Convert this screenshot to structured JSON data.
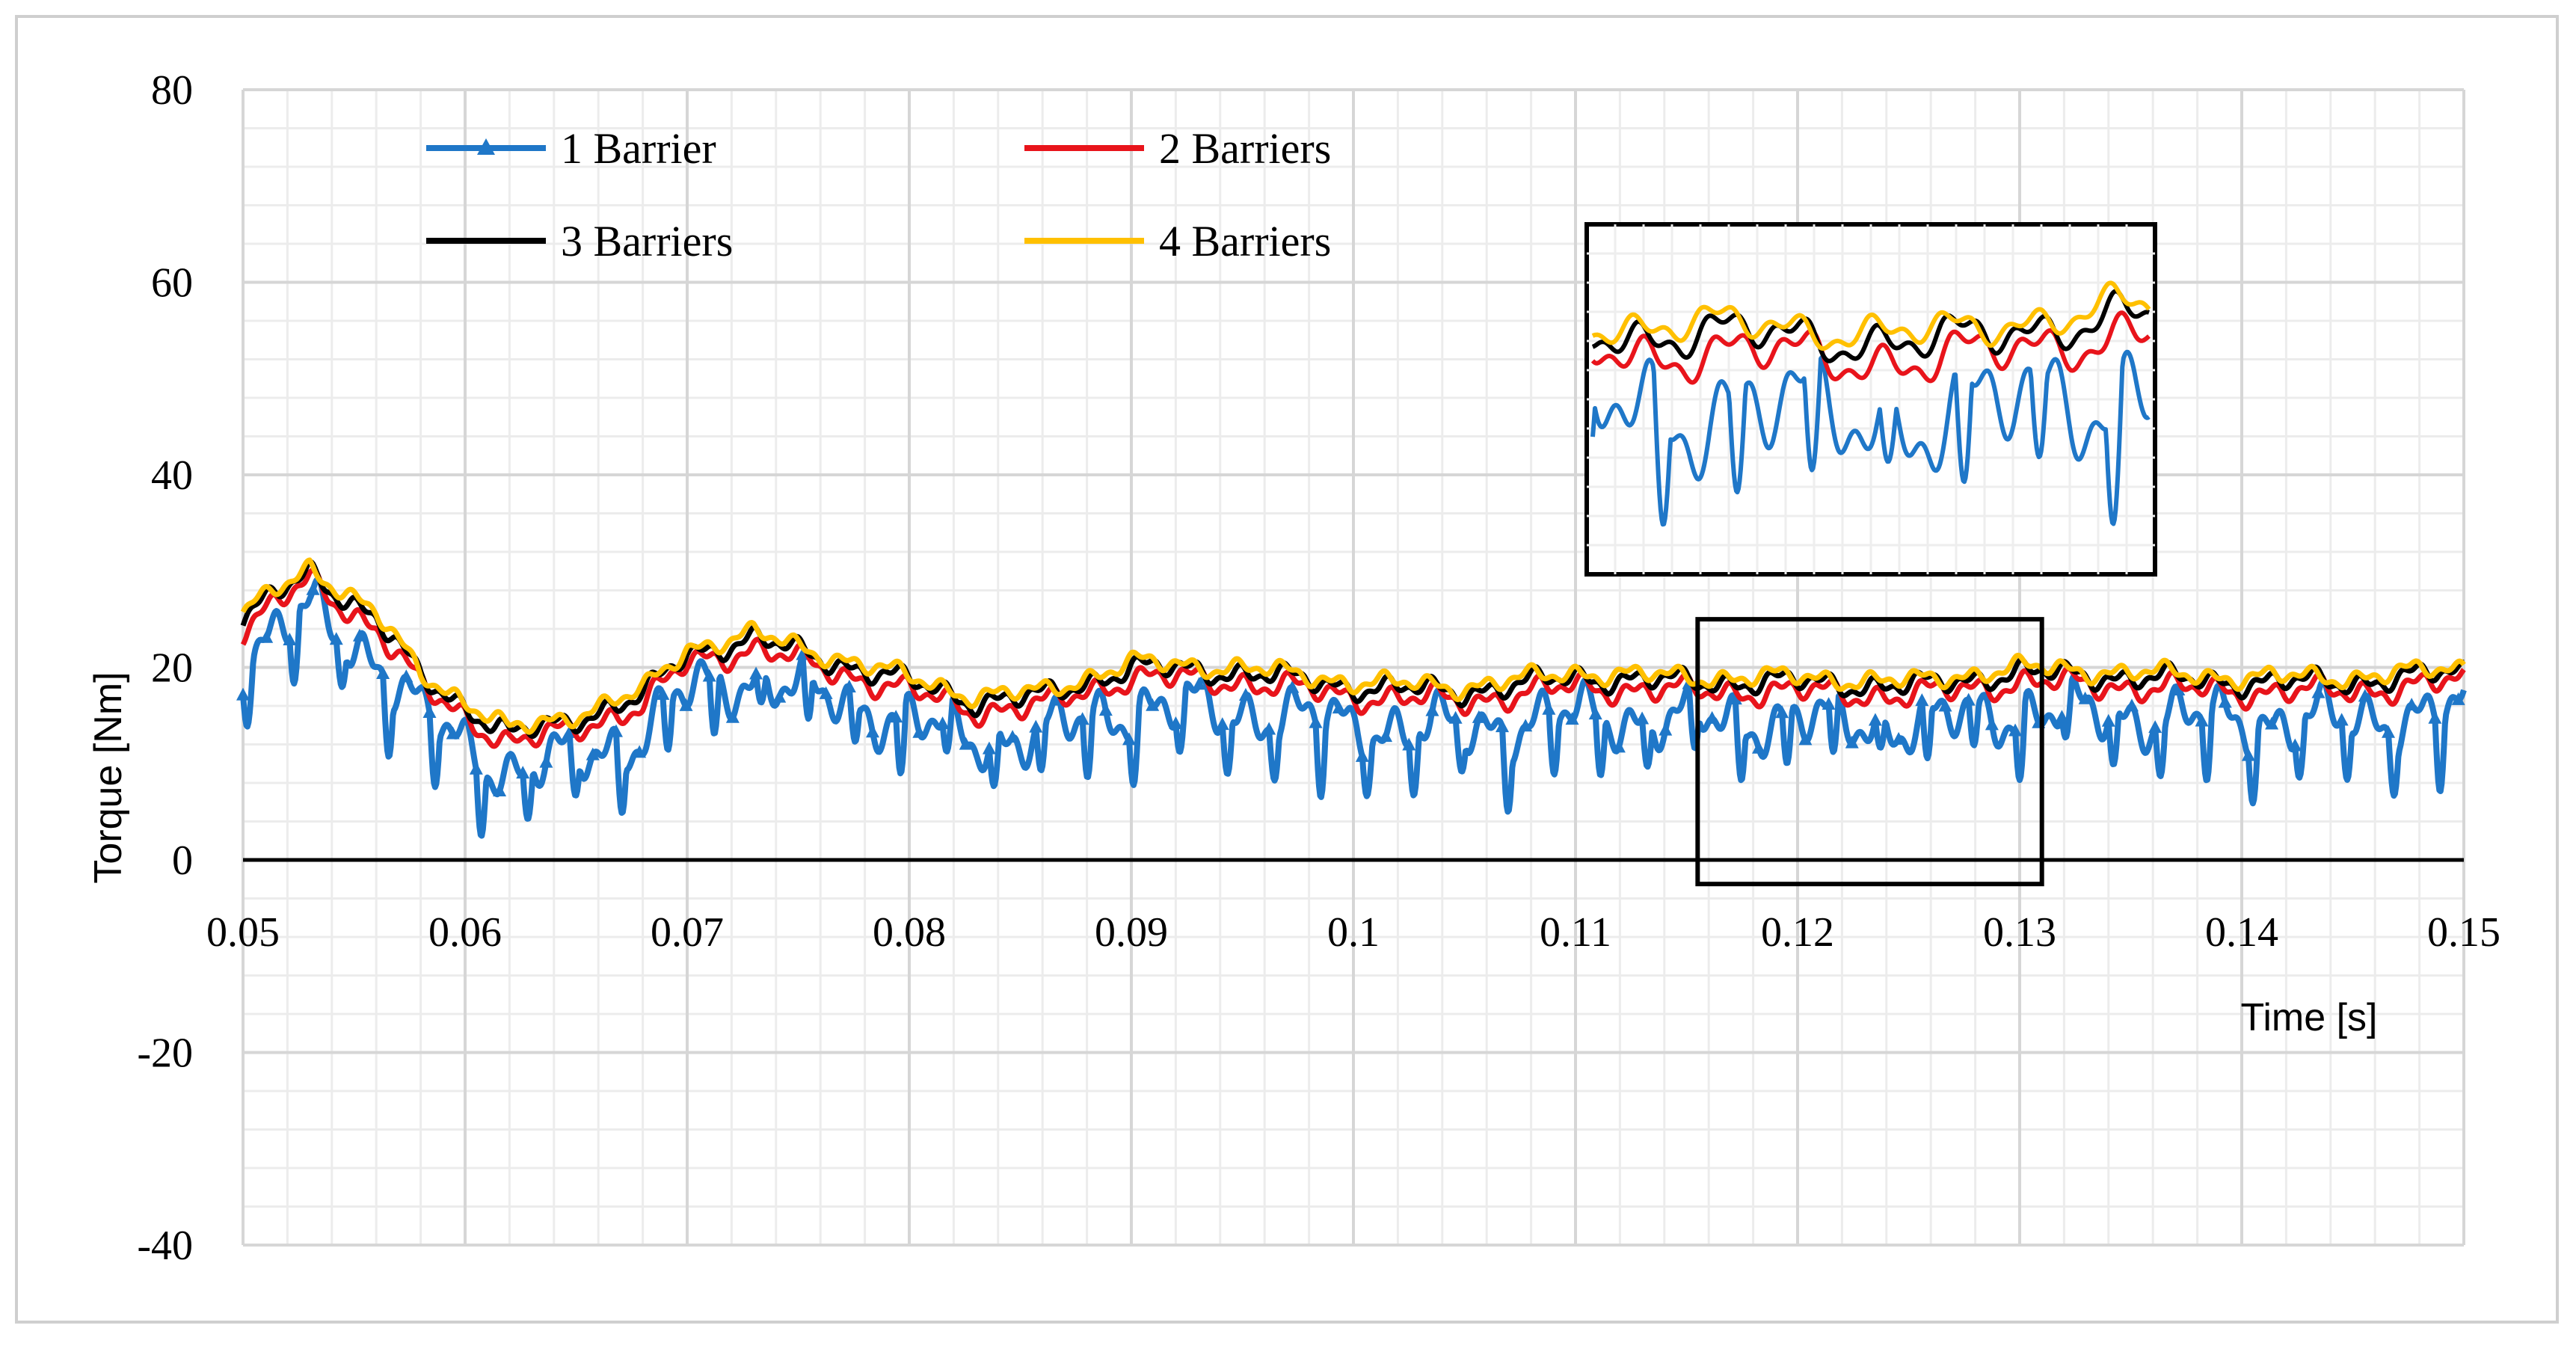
{
  "chart_data": {
    "type": "line",
    "title": "",
    "xlabel": "Time [s]",
    "ylabel": "Torque [Nm]",
    "xlim": [
      0.05,
      0.15
    ],
    "ylim": [
      -40,
      80
    ],
    "x_ticks": [
      "0.05",
      "0.06",
      "0.07",
      "0.08",
      "0.09",
      "0.1",
      "0.11",
      "0.12",
      "0.13",
      "0.14",
      "0.15"
    ],
    "y_ticks": [
      "80",
      "60",
      "40",
      "20",
      "0",
      "-20",
      "-40"
    ],
    "grid": true,
    "legend_position": "top-left",
    "series": [
      {
        "name": "1 Barrier",
        "color": "#1f77c8",
        "marker": "triangle",
        "mean": 15.5,
        "amplitude": 4.5,
        "note": "strong ripple with dips to about 7-12 Nm"
      },
      {
        "name": "2 Barriers",
        "color": "#e8141b",
        "marker": "none",
        "mean": 18.5,
        "amplitude": 2.0
      },
      {
        "name": "3 Barriers",
        "color": "#000000",
        "marker": "none",
        "mean": 19.5,
        "amplitude": 1.8
      },
      {
        "name": "4 Barriers",
        "color": "#ffc000",
        "marker": "none",
        "mean": 20.0,
        "amplitude": 1.5
      }
    ],
    "envelope_points": {
      "x": [
        0.05,
        0.053,
        0.056,
        0.058,
        0.06,
        0.062,
        0.064,
        0.066,
        0.068,
        0.07,
        0.073,
        0.076,
        0.08,
        0.083,
        0.086,
        0.09,
        0.095,
        0.1,
        0.105,
        0.11,
        0.115,
        0.12,
        0.125,
        0.13,
        0.135,
        0.14,
        0.145,
        0.15
      ],
      "y": [
        25,
        30,
        25,
        19,
        16,
        13,
        14,
        15.5,
        17,
        21.5,
        23,
        21,
        18.5,
        16.5,
        17,
        20,
        19.5,
        18,
        17.5,
        19,
        18.5,
        18.5,
        18,
        19.5,
        19,
        18.5,
        18.5,
        19.5
      ]
    },
    "annotations": [
      {
        "type": "zoom-box",
        "x_range": [
          0.1155,
          0.131
        ],
        "y_range": [
          -2.5,
          25
        ],
        "description": "zoomed inset of the 0.1155-0.131 s window"
      }
    ]
  }
}
